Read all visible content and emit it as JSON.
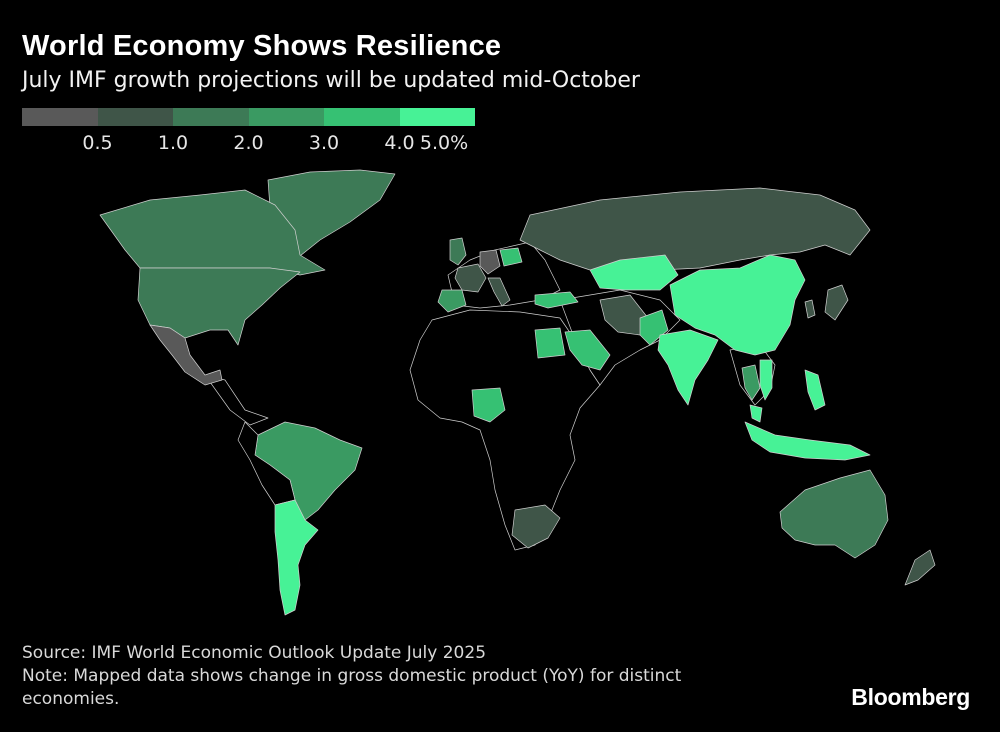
{
  "header": {
    "title": "World Economy Shows Resilience",
    "subtitle": "July IMF growth projections will be updated mid-October"
  },
  "legend": {
    "colors": [
      "#595959",
      "#3f5548",
      "#3d7a56",
      "#3a9a62",
      "#36c173",
      "#47f296"
    ],
    "labels": [
      "0.5",
      "1.0",
      "2.0",
      "3.0",
      "4.0",
      "5.0%"
    ]
  },
  "map": {
    "colors": {
      "background": "#000000",
      "no_data_fill": "#000000",
      "border": "#cfcfcf",
      "band_lt_0_5": "#595959",
      "band_0_5_1": "#3f5548",
      "band_1_2": "#3d7a56",
      "band_2_3": "#3a9a62",
      "band_3_4": "#36c173",
      "band_4_5": "#47f296"
    },
    "regions": [
      {
        "name": "Canada",
        "band": "band_1_2"
      },
      {
        "name": "Greenland",
        "band": "band_1_2"
      },
      {
        "name": "United States",
        "band": "band_1_2"
      },
      {
        "name": "Mexico",
        "band": "band_lt_0_5"
      },
      {
        "name": "Brazil",
        "band": "band_2_3"
      },
      {
        "name": "Argentina",
        "band": "band_4_5"
      },
      {
        "name": "Russia",
        "band": "band_0_5_1"
      },
      {
        "name": "Germany",
        "band": "band_lt_0_5"
      },
      {
        "name": "United Kingdom",
        "band": "band_1_2"
      },
      {
        "name": "France",
        "band": "band_0_5_1"
      },
      {
        "name": "Spain",
        "band": "band_2_3"
      },
      {
        "name": "Italy",
        "band": "band_0_5_1"
      },
      {
        "name": "Poland",
        "band": "band_3_4"
      },
      {
        "name": "Türkiye",
        "band": "band_3_4"
      },
      {
        "name": "Egypt",
        "band": "band_3_4"
      },
      {
        "name": "Saudi Arabia",
        "band": "band_3_4"
      },
      {
        "name": "Iran",
        "band": "band_0_5_1"
      },
      {
        "name": "Kazakhstan",
        "band": "band_4_5"
      },
      {
        "name": "China",
        "band": "band_4_5"
      },
      {
        "name": "India",
        "band": "band_4_5"
      },
      {
        "name": "Pakistan",
        "band": "band_3_4"
      },
      {
        "name": "Japan",
        "band": "band_0_5_1"
      },
      {
        "name": "Korea",
        "band": "band_0_5_1"
      },
      {
        "name": "Thailand",
        "band": "band_2_3"
      },
      {
        "name": "Vietnam",
        "band": "band_4_5"
      },
      {
        "name": "Malaysia",
        "band": "band_4_5"
      },
      {
        "name": "Philippines",
        "band": "band_4_5"
      },
      {
        "name": "Indonesia",
        "band": "band_4_5"
      },
      {
        "name": "Australia",
        "band": "band_1_2"
      },
      {
        "name": "New Zealand",
        "band": "band_0_5_1"
      },
      {
        "name": "Nigeria",
        "band": "band_3_4"
      },
      {
        "name": "South Africa",
        "band": "band_0_5_1"
      }
    ]
  },
  "footer": {
    "source": "Source: IMF World Economic Outlook Update July 2025",
    "note": "Note: Mapped data shows change in gross domestic product (YoY) for distinct economies.",
    "brand": "Bloomberg"
  }
}
